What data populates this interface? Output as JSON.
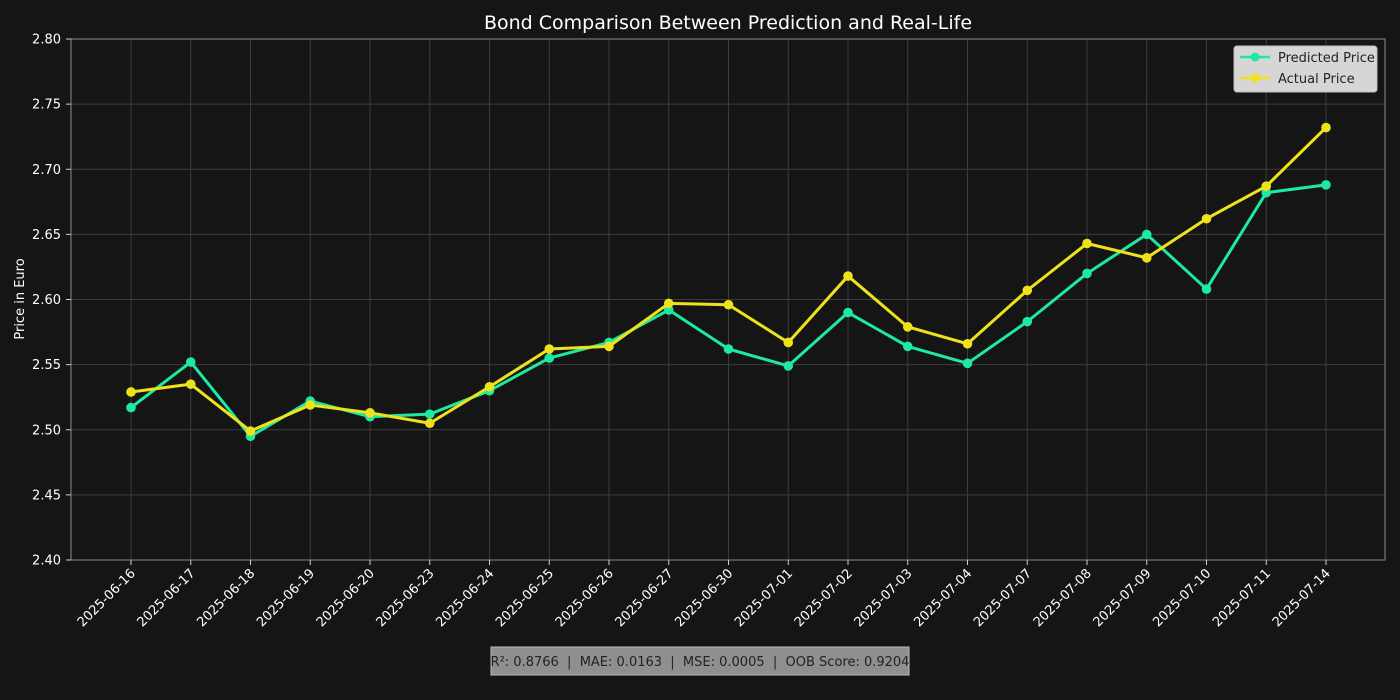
{
  "chart_data": {
    "type": "line",
    "title": "Bond Comparison Between Prediction and Real-Life",
    "xlabel": "",
    "ylabel": "Price in Euro",
    "ylim": [
      2.4,
      2.8
    ],
    "yticks": [
      "2.40",
      "2.45",
      "2.50",
      "2.55",
      "2.60",
      "2.65",
      "2.70",
      "2.75",
      "2.80"
    ],
    "x": [
      "2025-06-16",
      "2025-06-17",
      "2025-06-18",
      "2025-06-19",
      "2025-06-20",
      "2025-06-23",
      "2025-06-24",
      "2025-06-25",
      "2025-06-26",
      "2025-06-27",
      "2025-06-30",
      "2025-07-01",
      "2025-07-02",
      "2025-07-03",
      "2025-07-04",
      "2025-07-07",
      "2025-07-08",
      "2025-07-09",
      "2025-07-10",
      "2025-07-11",
      "2025-07-14"
    ],
    "grid": true,
    "legend_position": "top-right",
    "series": [
      {
        "name": "Predicted Price",
        "color": "#1de9a0",
        "values": [
          2.517,
          2.552,
          2.495,
          2.522,
          2.51,
          2.512,
          2.53,
          2.555,
          2.567,
          2.592,
          2.562,
          2.549,
          2.59,
          2.564,
          2.551,
          2.583,
          2.62,
          2.65,
          2.608,
          2.682,
          2.688
        ]
      },
      {
        "name": "Actual Price",
        "color": "#eee21a",
        "values": [
          2.529,
          2.535,
          2.499,
          2.519,
          2.513,
          2.505,
          2.533,
          2.562,
          2.564,
          2.597,
          2.596,
          2.567,
          2.618,
          2.579,
          2.566,
          2.607,
          2.643,
          2.632,
          2.662,
          2.687,
          2.732
        ]
      }
    ]
  },
  "metrics_text": "R²: 0.8766  |  MAE: 0.0163  |  MSE: 0.0005  |  OOB Score: 0.9204"
}
